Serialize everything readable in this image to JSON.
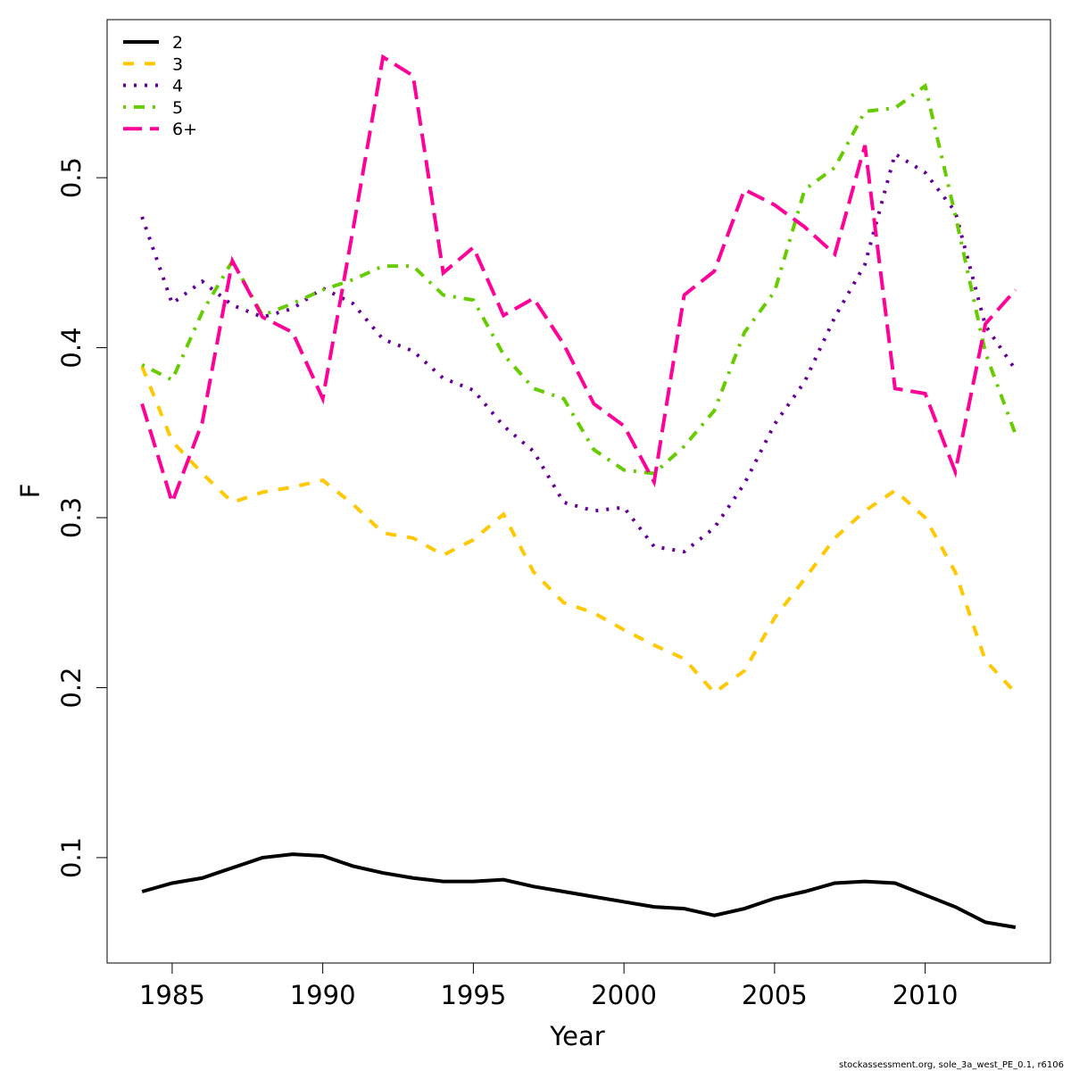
{
  "chart_data": {
    "type": "line",
    "xlabel": "Year",
    "ylabel": "F",
    "footer": "stockassessment.org, sole_3a_west_PE_0.1, r6106",
    "x": [
      1984,
      1985,
      1986,
      1987,
      1988,
      1989,
      1990,
      1991,
      1992,
      1993,
      1994,
      1995,
      1996,
      1997,
      1998,
      1999,
      2000,
      2001,
      2002,
      2003,
      2004,
      2005,
      2006,
      2007,
      2008,
      2009,
      2010,
      2011,
      2012,
      2013
    ],
    "series": [
      {
        "name": "2",
        "color": "#000000",
        "dash": "solid",
        "values": [
          0.08,
          0.085,
          0.088,
          0.094,
          0.1,
          0.102,
          0.101,
          0.095,
          0.091,
          0.088,
          0.086,
          0.086,
          0.087,
          0.083,
          0.08,
          0.077,
          0.074,
          0.071,
          0.07,
          0.066,
          0.07,
          0.076,
          0.08,
          0.085,
          0.086,
          0.085,
          0.078,
          0.071,
          0.062,
          0.059
        ]
      },
      {
        "name": "3",
        "color": "#ffc800",
        "dash": "dashed",
        "values": [
          0.389,
          0.345,
          0.326,
          0.309,
          0.315,
          0.318,
          0.322,
          0.308,
          0.291,
          0.288,
          0.278,
          0.287,
          0.302,
          0.268,
          0.25,
          0.244,
          0.234,
          0.225,
          0.217,
          0.197,
          0.21,
          0.241,
          0.264,
          0.288,
          0.304,
          0.316,
          0.3,
          0.268,
          0.216,
          0.197
        ]
      },
      {
        "name": "4",
        "color": "#660099",
        "dash": "dotted",
        "values": [
          0.477,
          0.426,
          0.439,
          0.425,
          0.418,
          0.423,
          0.435,
          0.426,
          0.405,
          0.398,
          0.382,
          0.375,
          0.354,
          0.339,
          0.309,
          0.304,
          0.306,
          0.283,
          0.28,
          0.294,
          0.32,
          0.355,
          0.38,
          0.418,
          0.449,
          0.514,
          0.503,
          0.48,
          0.413,
          0.387
        ]
      },
      {
        "name": "5",
        "color": "#66cc00",
        "dash": "dotdash",
        "values": [
          0.39,
          0.381,
          0.421,
          0.451,
          0.419,
          0.426,
          0.434,
          0.44,
          0.448,
          0.448,
          0.431,
          0.428,
          0.396,
          0.376,
          0.37,
          0.34,
          0.328,
          0.326,
          0.342,
          0.363,
          0.409,
          0.433,
          0.493,
          0.506,
          0.539,
          0.541,
          0.554,
          0.478,
          0.397,
          0.349
        ]
      },
      {
        "name": "6+",
        "color": "#ff0099",
        "dash": "longdash",
        "values": [
          0.367,
          0.309,
          0.356,
          0.451,
          0.418,
          0.409,
          0.37,
          0.469,
          0.571,
          0.56,
          0.444,
          0.459,
          0.419,
          0.429,
          0.402,
          0.367,
          0.354,
          0.321,
          0.431,
          0.445,
          0.493,
          0.484,
          0.471,
          0.455,
          0.519,
          0.376,
          0.373,
          0.327,
          0.414,
          0.434
        ]
      }
    ],
    "xlim": [
      1982.84,
      2014.16
    ],
    "xticks": [
      1985,
      1990,
      1995,
      2000,
      2005,
      2010
    ],
    "ylim": [
      0.038,
      0.593
    ],
    "yticks": [
      0.1,
      0.2,
      0.3,
      0.4,
      0.5
    ],
    "legend": "top-left"
  }
}
